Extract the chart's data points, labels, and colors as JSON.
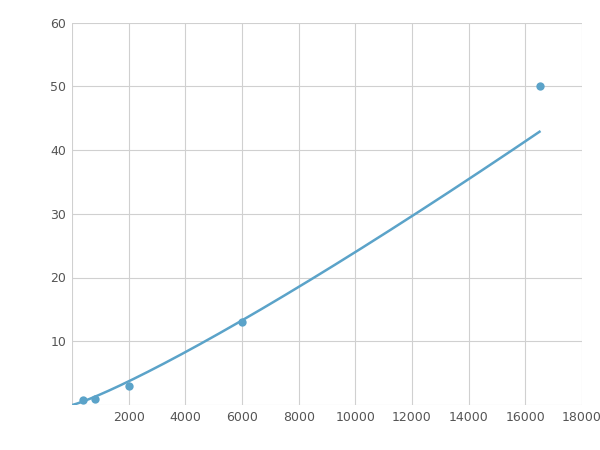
{
  "x_points": [
    400,
    800,
    2000,
    6000,
    16500
  ],
  "y_points": [
    0.8,
    1.0,
    3.0,
    13.0,
    50.0
  ],
  "line_color": "#5ba3c9",
  "marker_color": "#5ba3c9",
  "marker_size": 6,
  "line_width": 1.8,
  "xlim": [
    0,
    18000
  ],
  "ylim": [
    0,
    60
  ],
  "xticks": [
    0,
    2000,
    4000,
    6000,
    8000,
    10000,
    12000,
    14000,
    16000,
    18000
  ],
  "yticks": [
    0,
    10,
    20,
    30,
    40,
    50,
    60
  ],
  "grid_color": "#d0d0d0",
  "background_color": "#ffffff",
  "figure_bg": "#ffffff"
}
